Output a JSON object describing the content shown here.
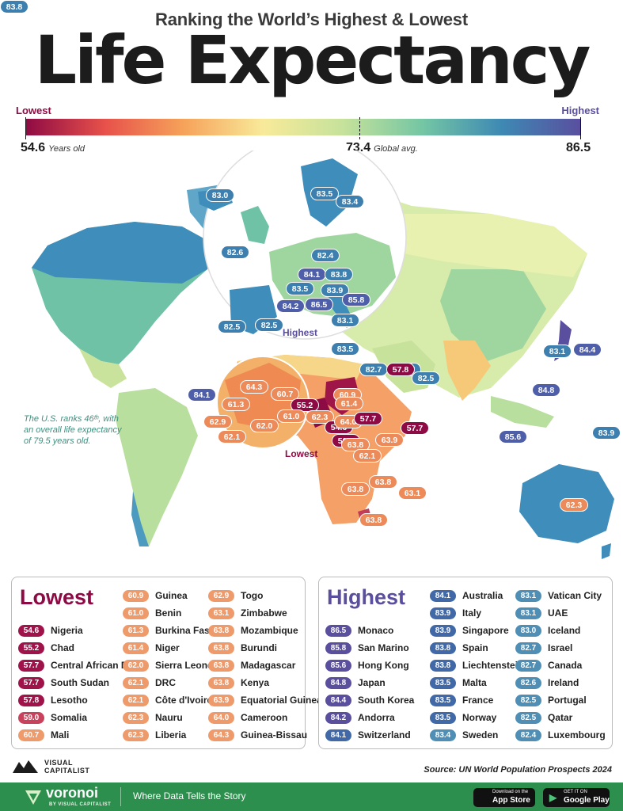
{
  "header": {
    "subtitle": "Ranking the World’s Highest & Lowest",
    "title": "Life Expectancy"
  },
  "scale": {
    "lowest_label": "Lowest",
    "highest_label": "Highest",
    "min_value": "54.6",
    "min_unit": "Years old",
    "avg_value": "73.4",
    "avg_unit": "Global avg.",
    "max_value": "86.5",
    "colors": [
      "#8e0a44",
      "#e7514a",
      "#f6a35a",
      "#f8ea9a",
      "#c6e29b",
      "#74c6a4",
      "#3e89b4",
      "#5a4e9e"
    ]
  },
  "map": {
    "europe_callout": "Highest",
    "africa_callout": "Lowest",
    "us_note": [
      "The U.S. ranks 46ᵗʰ, with",
      "an overall life expectancy",
      "of 79.5 years old."
    ],
    "labels": [
      {
        "v": "83.0",
        "c": "hb"
      },
      {
        "v": "83.5",
        "c": "hb"
      },
      {
        "v": "83.4",
        "c": "hb"
      },
      {
        "v": "82.6",
        "c": "hb"
      },
      {
        "v": "82.4",
        "c": "hb"
      },
      {
        "v": "84.1",
        "c": "hi"
      },
      {
        "v": "83.8",
        "c": "hb"
      },
      {
        "v": "83.5",
        "c": "hb"
      },
      {
        "v": "83.9",
        "c": "hb"
      },
      {
        "v": "85.8",
        "c": "hi"
      },
      {
        "v": "84.2",
        "c": "hi"
      },
      {
        "v": "86.5",
        "c": "hi"
      },
      {
        "v": "83.1",
        "c": "hb"
      },
      {
        "v": "83.8",
        "c": "hb"
      },
      {
        "v": "82.5",
        "c": "hb"
      },
      {
        "v": "83.5",
        "c": "hb"
      },
      {
        "v": "82.7",
        "c": "hb"
      },
      {
        "v": "82.7",
        "c": "hb"
      },
      {
        "v": "82.5",
        "c": "hb"
      },
      {
        "v": "83.1",
        "c": "hb"
      },
      {
        "v": "84.4",
        "c": "hi"
      },
      {
        "v": "84.8",
        "c": "hi"
      },
      {
        "v": "85.6",
        "c": "hi"
      },
      {
        "v": "83.9",
        "c": "hb"
      },
      {
        "v": "62.3",
        "c": "md"
      },
      {
        "v": "84.1",
        "c": "hi"
      },
      {
        "v": "64.3",
        "c": "md"
      },
      {
        "v": "60.7",
        "c": "md"
      },
      {
        "v": "61.3",
        "c": "md"
      },
      {
        "v": "60.9",
        "c": "md"
      },
      {
        "v": "61.4",
        "c": "md"
      },
      {
        "v": "55.2",
        "c": "lo"
      },
      {
        "v": "61.0",
        "c": "md"
      },
      {
        "v": "62.9",
        "c": "md"
      },
      {
        "v": "62.0",
        "c": "md"
      },
      {
        "v": "62.1",
        "c": "md"
      },
      {
        "v": "62.3",
        "c": "md"
      },
      {
        "v": "54.6",
        "c": "lo"
      },
      {
        "v": "64.0",
        "c": "md"
      },
      {
        "v": "57.7",
        "c": "lo"
      },
      {
        "v": "57.7",
        "c": "lo"
      },
      {
        "v": "59.0",
        "c": "lo"
      },
      {
        "v": "63.9",
        "c": "md"
      },
      {
        "v": "63.8",
        "c": "md"
      },
      {
        "v": "62.1",
        "c": "md"
      },
      {
        "v": "63.8",
        "c": "md"
      },
      {
        "v": "63.8",
        "c": "md"
      },
      {
        "v": "63.1",
        "c": "md"
      },
      {
        "v": "63.8",
        "c": "md"
      },
      {
        "v": "57.8",
        "c": "lo"
      },
      {
        "v": "82.5",
        "c": "hb"
      },
      {
        "v": "83.8",
        "c": "hb"
      }
    ]
  },
  "lowest": {
    "title": "Lowest",
    "rows": [
      {
        "v": "54.6",
        "n": "Nigeria"
      },
      {
        "v": "55.2",
        "n": "Chad"
      },
      {
        "v": "57.7",
        "n": "Central African Rep"
      },
      {
        "v": "57.7",
        "n": "South Sudan"
      },
      {
        "v": "57.8",
        "n": "Lesotho"
      },
      {
        "v": "59.0",
        "n": "Somalia"
      },
      {
        "v": "60.7",
        "n": "Mali"
      },
      {
        "v": "60.9",
        "n": "Guinea"
      },
      {
        "v": "61.0",
        "n": "Benin"
      },
      {
        "v": "61.3",
        "n": "Burkina Faso"
      },
      {
        "v": "61.4",
        "n": "Niger"
      },
      {
        "v": "62.0",
        "n": "Sierra Leone"
      },
      {
        "v": "62.1",
        "n": "DRC"
      },
      {
        "v": "62.1",
        "n": "Côte d'Ivoire"
      },
      {
        "v": "62.3",
        "n": "Nauru"
      },
      {
        "v": "62.3",
        "n": "Liberia"
      },
      {
        "v": "62.9",
        "n": "Togo"
      },
      {
        "v": "63.1",
        "n": "Zimbabwe"
      },
      {
        "v": "63.8",
        "n": "Mozambique"
      },
      {
        "v": "63.8",
        "n": "Burundi"
      },
      {
        "v": "63.8",
        "n": "Madagascar"
      },
      {
        "v": "63.8",
        "n": "Kenya"
      },
      {
        "v": "63.9",
        "n": "Equatorial Guinea"
      },
      {
        "v": "64.0",
        "n": "Cameroon"
      },
      {
        "v": "64.3",
        "n": "Guinea-Bissau"
      }
    ]
  },
  "highest": {
    "title": "Highest",
    "rows": [
      {
        "v": "86.5",
        "n": "Monaco"
      },
      {
        "v": "85.8",
        "n": "San Marino"
      },
      {
        "v": "85.6",
        "n": "Hong Kong"
      },
      {
        "v": "84.8",
        "n": "Japan"
      },
      {
        "v": "84.4",
        "n": "South Korea"
      },
      {
        "v": "84.2",
        "n": "Andorra"
      },
      {
        "v": "84.1",
        "n": "Switzerland"
      },
      {
        "v": "84.1",
        "n": "Australia"
      },
      {
        "v": "83.9",
        "n": "Italy"
      },
      {
        "v": "83.9",
        "n": "Singapore"
      },
      {
        "v": "83.8",
        "n": "Spain"
      },
      {
        "v": "83.8",
        "n": "Liechtenstein"
      },
      {
        "v": "83.5",
        "n": "Malta"
      },
      {
        "v": "83.5",
        "n": "France"
      },
      {
        "v": "83.5",
        "n": "Norway"
      },
      {
        "v": "83.4",
        "n": "Sweden"
      },
      {
        "v": "83.1",
        "n": "Vatican City"
      },
      {
        "v": "83.1",
        "n": "UAE"
      },
      {
        "v": "83.0",
        "n": "Iceland"
      },
      {
        "v": "82.7",
        "n": "Israel"
      },
      {
        "v": "82.7",
        "n": "Canada"
      },
      {
        "v": "82.6",
        "n": "Ireland"
      },
      {
        "v": "82.5",
        "n": "Portugal"
      },
      {
        "v": "82.5",
        "n": "Qatar"
      },
      {
        "v": "82.4",
        "n": "Luxembourg"
      }
    ]
  },
  "branding": {
    "logo_line1": "VISUAL",
    "logo_line2": "CAPITALIST",
    "source": "Source: UN World Population Prospects 2024",
    "voronoi": "voronoi",
    "voronoi_sub": "BY VISUAL CAPITALIST",
    "tagline": "Where Data Tells the Story",
    "app_store_small": "Download on the",
    "app_store": "App Store",
    "google_play_small": "GET IT ON",
    "google_play": "Google Play"
  }
}
